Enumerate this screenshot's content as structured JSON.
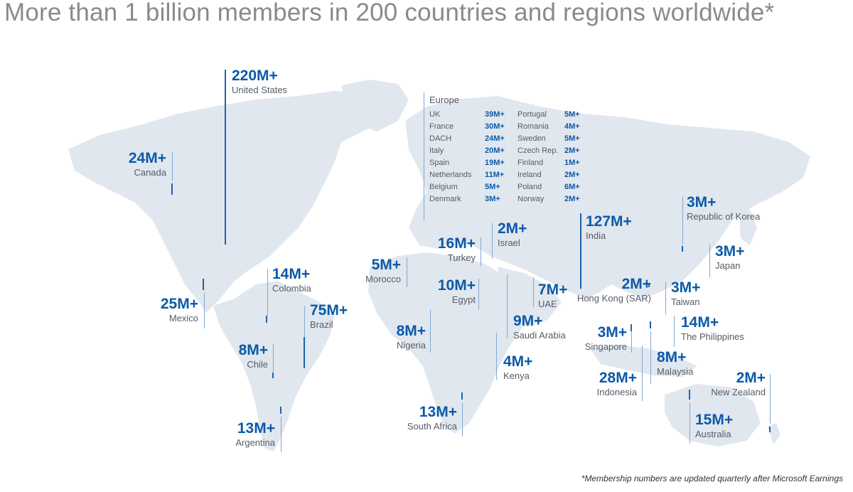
{
  "title": "More than 1 billion members in 200 countries and regions worldwide*",
  "footnote": "*Membership numbers are updated quarterly after Microsoft Earnings",
  "colors": {
    "accent": "#0b5aa8",
    "land": "#e1e7ee",
    "label": "#555c66"
  },
  "europe": {
    "heading": "Europe",
    "rows": [
      {
        "c1": "UK",
        "v1": "39M+",
        "c2": "Portugal",
        "v2": "5M+"
      },
      {
        "c1": "France",
        "v1": "30M+",
        "c2": "Romania",
        "v2": "4M+"
      },
      {
        "c1": "DACH",
        "v1": "24M+",
        "c2": "Sweden",
        "v2": "5M+"
      },
      {
        "c1": "Italy",
        "v1": "20M+",
        "c2": "Czech Rep.",
        "v2": "2M+"
      },
      {
        "c1": "Spain",
        "v1": "19M+",
        "c2": "Finland",
        "v2": "1M+"
      },
      {
        "c1": "Netherlands",
        "v1": "11M+",
        "c2": "Ireland",
        "v2": "2M+"
      },
      {
        "c1": "Belgium",
        "v1": "5M+",
        "c2": "Poland",
        "v2": "6M+"
      },
      {
        "c1": "Denmark",
        "v1": "3M+",
        "c2": "Norway",
        "v2": "2M+"
      }
    ]
  },
  "regions": {
    "us": {
      "value": "220M+",
      "name": "United States"
    },
    "canada": {
      "value": "24M+",
      "name": "Canada"
    },
    "mexico": {
      "value": "25M+",
      "name": "Mexico"
    },
    "colombia": {
      "value": "14M+",
      "name": "Colombia"
    },
    "brazil": {
      "value": "75M+",
      "name": "Brazil"
    },
    "chile": {
      "value": "8M+",
      "name": "Chile"
    },
    "argentina": {
      "value": "13M+",
      "name": "Argentina"
    },
    "morocco": {
      "value": "5M+",
      "name": "Morocco"
    },
    "turkey": {
      "value": "16M+",
      "name": "Turkey"
    },
    "israel": {
      "value": "2M+",
      "name": "Israel"
    },
    "egypt": {
      "value": "10M+",
      "name": "Egypt"
    },
    "nigeria": {
      "value": "8M+",
      "name": "Nigeria"
    },
    "saudi": {
      "value": "9M+",
      "name": "Saudi Arabia"
    },
    "uae": {
      "value": "7M+",
      "name": "UAE"
    },
    "kenya": {
      "value": "4M+",
      "name": "Kenya"
    },
    "southafrica": {
      "value": "13M+",
      "name": "South Africa"
    },
    "india": {
      "value": "127M+",
      "name": "India"
    },
    "korea": {
      "value": "3M+",
      "name": "Republic of Korea"
    },
    "japan": {
      "value": "3M+",
      "name": "Japan"
    },
    "hongkong": {
      "value": "2M+",
      "name": "Hong Kong (SAR)"
    },
    "taiwan": {
      "value": "3M+",
      "name": "Taiwan"
    },
    "philippines": {
      "value": "14M+",
      "name": "The Philippines"
    },
    "singapore": {
      "value": "3M+",
      "name": "Singapore"
    },
    "malaysia": {
      "value": "8M+",
      "name": "Malaysia"
    },
    "indonesia": {
      "value": "28M+",
      "name": "Indonesia"
    },
    "newzealand": {
      "value": "2M+",
      "name": "New Zealand"
    },
    "australia": {
      "value": "15M+",
      "name": "Australia"
    }
  }
}
